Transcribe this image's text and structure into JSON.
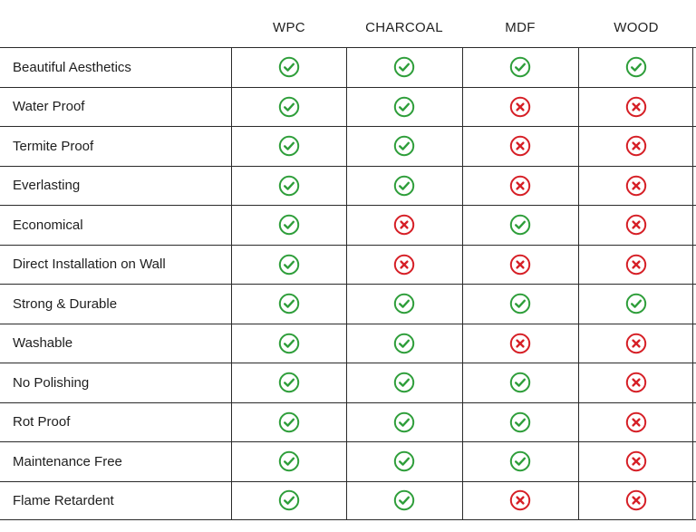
{
  "columns": [
    "WPC",
    "CHARCOAL",
    "MDF",
    "WOOD"
  ],
  "colors": {
    "yes": "#2e9e3a",
    "no": "#d61f26"
  },
  "icons": {
    "yes": "check-circle-icon",
    "no": "cross-circle-icon"
  },
  "rows": [
    {
      "feature": "Beautiful Aesthetics",
      "values": [
        "yes",
        "yes",
        "yes",
        "yes"
      ]
    },
    {
      "feature": "Water Proof",
      "values": [
        "yes",
        "yes",
        "no",
        "no"
      ]
    },
    {
      "feature": "Termite Proof",
      "values": [
        "yes",
        "yes",
        "no",
        "no"
      ]
    },
    {
      "feature": "Everlasting",
      "values": [
        "yes",
        "yes",
        "no",
        "no"
      ]
    },
    {
      "feature": "Economical",
      "values": [
        "yes",
        "no",
        "yes",
        "no"
      ]
    },
    {
      "feature": "Direct Installation on Wall",
      "values": [
        "yes",
        "no",
        "no",
        "no"
      ]
    },
    {
      "feature": "Strong & Durable",
      "values": [
        "yes",
        "yes",
        "yes",
        "yes"
      ]
    },
    {
      "feature": "Washable",
      "values": [
        "yes",
        "yes",
        "no",
        "no"
      ]
    },
    {
      "feature": "No Polishing",
      "values": [
        "yes",
        "yes",
        "yes",
        "no"
      ]
    },
    {
      "feature": "Rot Proof",
      "values": [
        "yes",
        "yes",
        "yes",
        "no"
      ]
    },
    {
      "feature": "Maintenance Free",
      "values": [
        "yes",
        "yes",
        "yes",
        "no"
      ]
    },
    {
      "feature": "Flame Retardent",
      "values": [
        "yes",
        "yes",
        "no",
        "no"
      ]
    }
  ]
}
